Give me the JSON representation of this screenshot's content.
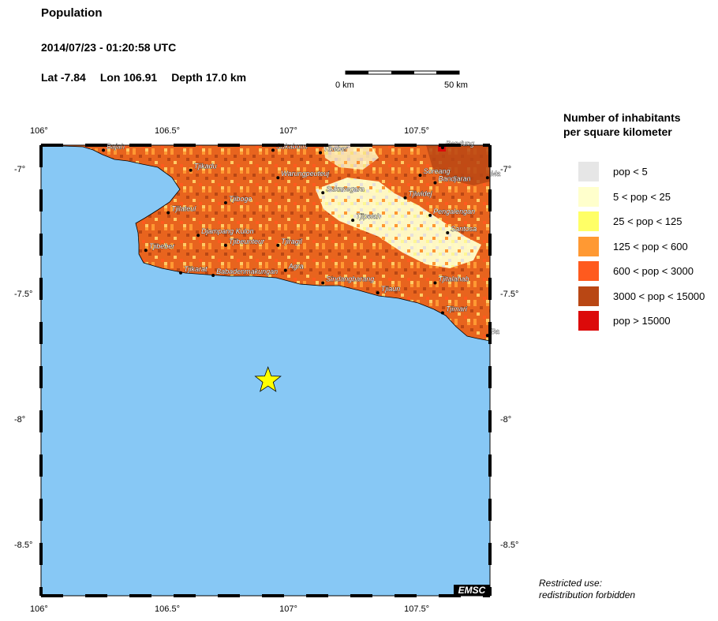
{
  "title": "Population",
  "datetime": "2014/07/23 - 01:20:58 UTC",
  "location": {
    "lat": "Lat -7.84",
    "lon": "Lon 106.91",
    "depth": "Depth  17.0 km"
  },
  "scale": {
    "start": "0 km",
    "end": "50 km"
  },
  "axes": {
    "x_ticks": [
      "106°",
      "106.5°",
      "107°",
      "107.5°"
    ],
    "y_ticks": [
      "-7°",
      "-7.5°",
      "-8°",
      "-8.5°"
    ]
  },
  "epicenter": {
    "lon": 106.91,
    "lat": -7.84,
    "symbol": "star-icon",
    "color": "#ffff00"
  },
  "towns": [
    {
      "name": "Bajah",
      "lon": 106.25,
      "lat": -6.92
    },
    {
      "name": "Sukabumi",
      "lon": 106.93,
      "lat": -6.92
    },
    {
      "name": "Tibeber",
      "lon": 107.12,
      "lat": -6.93
    },
    {
      "name": "Bandung",
      "lon": 107.61,
      "lat": -6.91
    },
    {
      "name": "Tjikadu",
      "lon": 106.6,
      "lat": -7.0
    },
    {
      "name": "Warungpeuteuj",
      "lon": 106.95,
      "lat": -7.03
    },
    {
      "name": "Soreang",
      "lon": 107.52,
      "lat": -7.02
    },
    {
      "name": "Bandjaran",
      "lon": 107.58,
      "lat": -7.05
    },
    {
      "name": "Tjiwidej",
      "lon": 107.46,
      "lat": -7.11
    },
    {
      "name": "Sukanegara",
      "lon": 107.13,
      "lat": -7.09
    },
    {
      "name": "Tjibogo",
      "lon": 106.74,
      "lat": -7.13
    },
    {
      "name": "Tjilateul",
      "lon": 106.51,
      "lat": -7.17
    },
    {
      "name": "Pengalengan",
      "lon": 107.56,
      "lat": -7.18
    },
    {
      "name": "Tjipelah",
      "lon": 107.25,
      "lat": -7.2
    },
    {
      "name": "Santosa",
      "lon": 107.63,
      "lat": -7.25
    },
    {
      "name": "Djampang Kulon",
      "lon": 106.63,
      "lat": -7.26
    },
    {
      "name": "Tjibeunteur",
      "lon": 106.74,
      "lat": -7.3
    },
    {
      "name": "Tjiragil",
      "lon": 106.95,
      "lat": -7.3
    },
    {
      "name": "Tjibeber",
      "lon": 106.42,
      "lat": -7.32
    },
    {
      "name": "Tjikarat",
      "lon": 106.56,
      "lat": -7.41
    },
    {
      "name": "Babadenmakungan",
      "lon": 106.69,
      "lat": -7.42
    },
    {
      "name": "Agra",
      "lon": 106.98,
      "lat": -7.4
    },
    {
      "name": "Sindangbarang",
      "lon": 107.13,
      "lat": -7.45
    },
    {
      "name": "Tjiaun",
      "lon": 107.35,
      "lat": -7.49
    },
    {
      "name": "Tjitalahab",
      "lon": 107.58,
      "lat": -7.45
    },
    {
      "name": "Tjimari",
      "lon": 107.61,
      "lat": -7.57
    },
    {
      "name": "Ba",
      "lon": 107.79,
      "lat": -7.66
    },
    {
      "name": "Ma",
      "lon": 107.79,
      "lat": -7.03
    }
  ],
  "legend": {
    "title_line1": "Number of inhabitants",
    "title_line2": "per square kilometer",
    "items": [
      {
        "label": "pop < 5",
        "color": "#e6e6e6"
      },
      {
        "label": "5 < pop < 25",
        "color": "#ffffcc"
      },
      {
        "label": "25 < pop < 125",
        "color": "#ffff66"
      },
      {
        "label": "125 < pop < 600",
        "color": "#ff9933"
      },
      {
        "label": "600 < pop < 3000",
        "color": "#ff5a1e"
      },
      {
        "label": "3000 < pop < 15000",
        "color": "#b94714"
      },
      {
        "label": "pop > 15000",
        "color": "#dc0a0a"
      }
    ]
  },
  "restricted_line1": "Restricted use:",
  "restricted_line2": "redistribution forbidden",
  "logo": "EMSC",
  "colors": {
    "ocean": "#87c8f5",
    "land_base": "#e8641e"
  }
}
